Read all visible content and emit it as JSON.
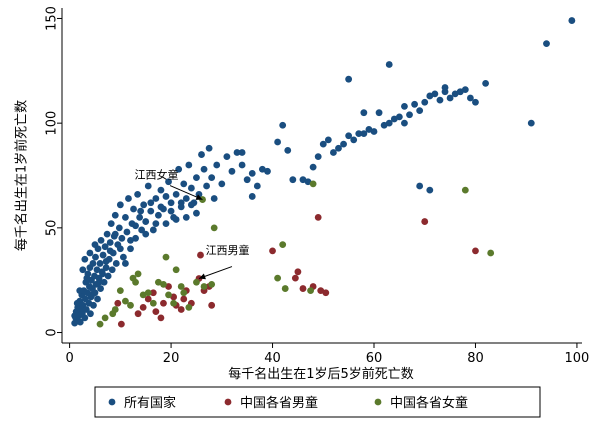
{
  "chart_data": {
    "type": "scatter",
    "xlabel": "每千名出生在1岁后5岁前死亡数",
    "ylabel": "每千名出生在1岁前死亡数",
    "xlim": [
      -1.5,
      101
    ],
    "ylim": [
      -5,
      155
    ],
    "x_ticks": [
      0,
      20,
      40,
      60,
      80,
      100
    ],
    "y_ticks": [
      0,
      50,
      100,
      150
    ],
    "x_tick_labels": [
      "0",
      "20",
      "40",
      "60",
      "80",
      "100"
    ],
    "y_tick_labels": [
      "0",
      "50",
      "100",
      "150"
    ],
    "grid": false,
    "legend_position": "bottom",
    "colors": {
      "所有国家": "#1a4e80",
      "中国各省男童": "#8c2a2e",
      "中国各省女童": "#5b7a2c"
    },
    "annotations": [
      {
        "text": "江西女童",
        "x": 12.8,
        "y": 73.5,
        "target_x": 26.2,
        "target_y": 63.5,
        "anchor": "left",
        "arrow_from": [
          19.8,
          70.2
        ]
      },
      {
        "text": "江西男童",
        "x": 26.8,
        "y": 37.5,
        "target_x": 25.5,
        "target_y": 25.8,
        "anchor": "left",
        "arrow_from": [
          32.0,
          31.5
        ]
      }
    ],
    "series": [
      {
        "name": "所有国家",
        "points": [
          [
            1.0,
            4.5
          ],
          [
            1.2,
            7
          ],
          [
            1.3,
            10
          ],
          [
            1.5,
            6
          ],
          [
            1.6,
            12
          ],
          [
            1.8,
            8
          ],
          [
            2.0,
            15
          ],
          [
            2.1,
            5
          ],
          [
            2.2,
            11
          ],
          [
            2.4,
            18
          ],
          [
            2.5,
            9
          ],
          [
            2.6,
            13
          ],
          [
            2.8,
            20
          ],
          [
            3.0,
            7
          ],
          [
            3.1,
            16
          ],
          [
            3.2,
            24
          ],
          [
            3.3,
            11
          ],
          [
            3.5,
            19
          ],
          [
            3.6,
            28
          ],
          [
            3.8,
            14
          ],
          [
            3.9,
            22
          ],
          [
            4.0,
            31
          ],
          [
            4.1,
            9
          ],
          [
            4.2,
            17
          ],
          [
            4.3,
            25
          ],
          [
            4.5,
            21
          ],
          [
            4.6,
            33
          ],
          [
            4.7,
            13
          ],
          [
            4.9,
            27
          ],
          [
            5.0,
            19
          ],
          [
            5.1,
            36
          ],
          [
            5.2,
            23
          ],
          [
            5.4,
            30
          ],
          [
            5.5,
            16
          ],
          [
            5.6,
            40
          ],
          [
            5.8,
            26
          ],
          [
            6.0,
            33
          ],
          [
            6.1,
            21
          ],
          [
            6.2,
            44
          ],
          [
            6.4,
            29
          ],
          [
            6.6,
            37
          ],
          [
            6.8,
            24
          ],
          [
            7.0,
            41
          ],
          [
            7.2,
            31
          ],
          [
            7.4,
            47
          ],
          [
            7.6,
            27
          ],
          [
            7.8,
            35
          ],
          [
            8.0,
            43
          ],
          [
            8.2,
            52
          ],
          [
            8.4,
            30
          ],
          [
            8.6,
            38
          ],
          [
            8.8,
            46
          ],
          [
            9.0,
            56
          ],
          [
            9.2,
            33
          ],
          [
            9.5,
            42
          ],
          [
            9.8,
            50
          ],
          [
            10.0,
            61
          ],
          [
            10.3,
            45
          ],
          [
            10.6,
            36
          ],
          [
            11.0,
            55
          ],
          [
            11.3,
            48
          ],
          [
            11.6,
            64
          ],
          [
            12.0,
            40
          ],
          [
            12.3,
            52
          ],
          [
            12.6,
            59
          ],
          [
            13.0,
            45
          ],
          [
            13.4,
            66
          ],
          [
            13.8,
            55
          ],
          [
            14.2,
            49
          ],
          [
            14.6,
            61
          ],
          [
            15.0,
            53
          ],
          [
            15.5,
            70
          ],
          [
            16.0,
            58
          ],
          [
            16.5,
            49
          ],
          [
            17.0,
            64
          ],
          [
            17.5,
            56
          ],
          [
            18.0,
            68
          ],
          [
            18.5,
            59
          ],
          [
            19.0,
            52
          ],
          [
            19.5,
            72
          ],
          [
            20.0,
            62
          ],
          [
            20.5,
            55
          ],
          [
            21.0,
            66
          ],
          [
            21.5,
            78
          ],
          [
            22.0,
            60
          ],
          [
            22.5,
            71
          ],
          [
            23.0,
            64
          ],
          [
            23.5,
            80
          ],
          [
            24.0,
            69
          ],
          [
            24.5,
            62
          ],
          [
            25.0,
            74
          ],
          [
            25.5,
            66
          ],
          [
            26.0,
            85
          ],
          [
            26.5,
            78
          ],
          [
            27.0,
            70
          ],
          [
            27.5,
            88
          ],
          [
            28.0,
            74
          ],
          [
            28.5,
            64
          ],
          [
            29.0,
            80
          ],
          [
            30.0,
            71
          ],
          [
            31.0,
            84
          ],
          [
            32.0,
            77
          ],
          [
            33.0,
            86
          ],
          [
            34.0,
            80
          ],
          [
            35.0,
            73
          ],
          [
            36.0,
            65
          ],
          [
            37.0,
            70
          ],
          [
            38.0,
            78
          ],
          [
            1.0,
            8
          ],
          [
            1.5,
            14
          ],
          [
            2.0,
            20
          ],
          [
            2.6,
            30
          ],
          [
            3.0,
            35
          ],
          [
            3.4,
            26
          ],
          [
            4.0,
            38
          ],
          [
            4.4,
            18
          ],
          [
            5.0,
            42
          ],
          [
            5.8,
            24
          ],
          [
            6.5,
            28
          ],
          [
            7.2,
            34
          ],
          [
            8.0,
            39
          ],
          [
            9.0,
            47
          ],
          [
            10.0,
            40
          ],
          [
            11.0,
            33
          ],
          [
            12.0,
            44
          ],
          [
            13.0,
            51
          ],
          [
            14.0,
            58
          ],
          [
            15.0,
            47
          ],
          [
            16.0,
            62
          ],
          [
            17.0,
            52
          ],
          [
            18.0,
            60
          ],
          [
            19.0,
            65
          ],
          [
            20.0,
            58
          ],
          [
            21.0,
            54
          ],
          [
            22.0,
            62
          ],
          [
            23.0,
            55
          ],
          [
            24.0,
            61
          ],
          [
            25.0,
            57
          ],
          [
            41.0,
            91
          ],
          [
            43.0,
            87
          ],
          [
            44.0,
            73
          ],
          [
            46.0,
            73
          ],
          [
            47.0,
            72
          ],
          [
            48.0,
            79
          ],
          [
            49.0,
            84
          ],
          [
            50.0,
            90
          ],
          [
            51.0,
            92
          ],
          [
            52.0,
            86
          ],
          [
            53.0,
            88
          ],
          [
            54.0,
            90
          ],
          [
            55.0,
            94
          ],
          [
            56.0,
            92
          ],
          [
            57.0,
            95
          ],
          [
            58.0,
            95
          ],
          [
            59.0,
            97
          ],
          [
            60.0,
            96
          ],
          [
            61.0,
            105
          ],
          [
            62.0,
            99
          ],
          [
            63.0,
            100
          ],
          [
            64.0,
            102
          ],
          [
            65.0,
            103
          ],
          [
            66.0,
            108
          ],
          [
            67.0,
            104
          ],
          [
            68.0,
            109
          ],
          [
            69.0,
            106
          ],
          [
            70.0,
            110
          ],
          [
            71.0,
            113
          ],
          [
            72.0,
            114
          ],
          [
            73.0,
            111
          ],
          [
            74.0,
            115
          ],
          [
            75.0,
            112
          ],
          [
            76.0,
            114
          ],
          [
            77.0,
            115
          ],
          [
            78.0,
            116
          ],
          [
            79.0,
            112
          ],
          [
            80.0,
            110
          ],
          [
            82.0,
            119
          ],
          [
            91.0,
            100
          ],
          [
            94.0,
            138
          ],
          [
            99.0,
            149
          ],
          [
            55.0,
            121
          ],
          [
            58.0,
            105
          ],
          [
            63.0,
            128
          ],
          [
            66.0,
            100
          ],
          [
            69.0,
            70
          ],
          [
            71.0,
            68
          ],
          [
            74.0,
            117
          ],
          [
            77.0,
            115
          ],
          [
            42.0,
            99
          ],
          [
            34.0,
            86
          ],
          [
            36.0,
            76
          ],
          [
            39.0,
            77
          ]
        ]
      },
      {
        "name": "中国各省男童",
        "points": [
          [
            9.5,
            14
          ],
          [
            10.2,
            4
          ],
          [
            13.5,
            9
          ],
          [
            14.5,
            12
          ],
          [
            15.5,
            16
          ],
          [
            16.5,
            19
          ],
          [
            17.0,
            10
          ],
          [
            18.0,
            7
          ],
          [
            18.5,
            14
          ],
          [
            19.5,
            22
          ],
          [
            20.5,
            17
          ],
          [
            21.0,
            13
          ],
          [
            22.0,
            11
          ],
          [
            22.5,
            16
          ],
          [
            23.0,
            20
          ],
          [
            24.0,
            14
          ],
          [
            25.5,
            25.8
          ],
          [
            25.8,
            37
          ],
          [
            26.5,
            20
          ],
          [
            27.5,
            22
          ],
          [
            28.0,
            13
          ],
          [
            40.0,
            39
          ],
          [
            44.5,
            26
          ],
          [
            45.0,
            29
          ],
          [
            46.0,
            21
          ],
          [
            48.0,
            22
          ],
          [
            49.0,
            55
          ],
          [
            49.5,
            20
          ],
          [
            50.5,
            19
          ],
          [
            70.0,
            53
          ],
          [
            80.0,
            39
          ]
        ]
      },
      {
        "name": "中国各省女童",
        "points": [
          [
            6.0,
            4
          ],
          [
            7.0,
            7
          ],
          [
            8.5,
            9
          ],
          [
            9.0,
            11
          ],
          [
            10.0,
            20
          ],
          [
            11.0,
            15
          ],
          [
            12.0,
            13
          ],
          [
            12.5,
            26
          ],
          [
            13.0,
            24
          ],
          [
            13.5,
            28
          ],
          [
            14.5,
            18
          ],
          [
            15.5,
            19
          ],
          [
            16.5,
            14
          ],
          [
            17.5,
            24
          ],
          [
            18.5,
            23
          ],
          [
            19.0,
            36
          ],
          [
            19.5,
            18
          ],
          [
            20.5,
            14
          ],
          [
            21.0,
            30
          ],
          [
            22.0,
            22
          ],
          [
            22.5,
            19
          ],
          [
            23.5,
            12
          ],
          [
            25.0,
            24
          ],
          [
            26.2,
            63.5
          ],
          [
            26.5,
            22
          ],
          [
            28.0,
            23
          ],
          [
            28.5,
            50
          ],
          [
            41.0,
            26
          ],
          [
            42.0,
            42
          ],
          [
            42.5,
            21
          ],
          [
            47.5,
            20
          ],
          [
            48.0,
            71
          ],
          [
            78.0,
            68
          ],
          [
            83.0,
            38
          ]
        ]
      }
    ]
  }
}
